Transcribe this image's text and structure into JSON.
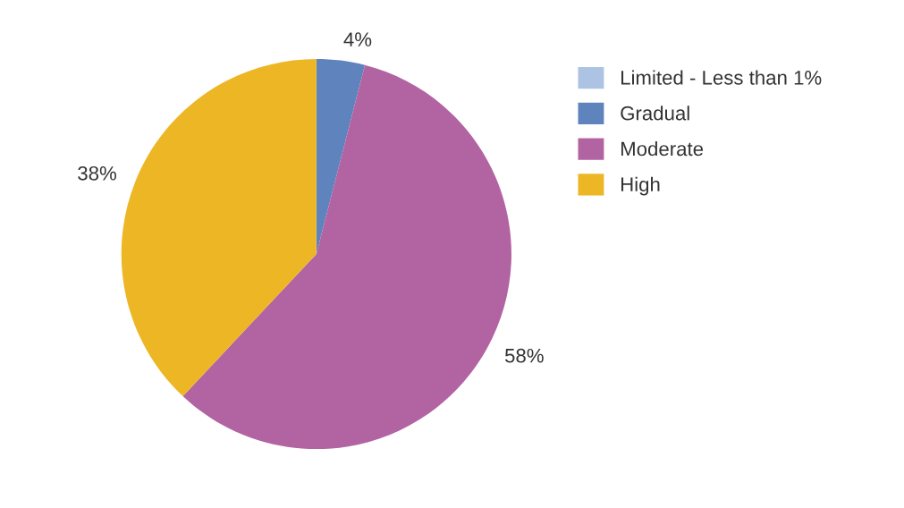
{
  "chart_data": {
    "type": "pie",
    "categories": [
      "Limited - Less than 1%",
      "Gradual",
      "Moderate",
      "High"
    ],
    "values": [
      null,
      4,
      58,
      38
    ],
    "colors": [
      "#adc3e3",
      "#5f83bd",
      "#b263a2",
      "#edb625"
    ],
    "value_labels": [
      null,
      "4%",
      "58%",
      "38%"
    ],
    "legend": "right"
  }
}
